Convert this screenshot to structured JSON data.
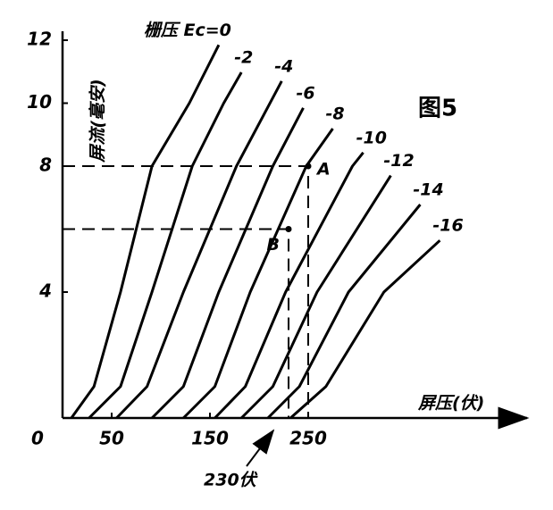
{
  "chart_data": {
    "type": "line",
    "title": "图5",
    "y_label": "屏流(毫安)",
    "x_label": "屏压(伏)",
    "annotation": "230伏",
    "color": "#000000",
    "xlim": [
      0,
      460
    ],
    "xticks": [
      0,
      50,
      150,
      250
    ],
    "ylim": [
      0,
      12
    ],
    "yticks": [
      4,
      8,
      10,
      12
    ],
    "series": [
      {
        "name": "栅压 Ec=0",
        "x": [
          9,
          32,
          59,
          91,
          129,
          159
        ],
        "values": [
          0,
          1,
          4,
          8,
          10,
          11.85
        ]
      },
      {
        "name": "-2",
        "x": [
          27,
          59,
          91,
          132,
          164,
          182
        ],
        "values": [
          0,
          1,
          4,
          8,
          10,
          10.98
        ]
      },
      {
        "name": "-4",
        "x": [
          55,
          86,
          123,
          177,
          223
        ],
        "values": [
          0,
          1,
          4,
          8,
          10.7
        ]
      },
      {
        "name": "-6",
        "x": [
          91,
          123,
          159,
          214,
          245
        ],
        "values": [
          0,
          1,
          4,
          8,
          9.85
        ]
      },
      {
        "name": "-8",
        "x": [
          123,
          155,
          191,
          248,
          275
        ],
        "values": [
          0,
          1,
          4,
          8,
          9.19
        ]
      },
      {
        "name": "-10",
        "x": [
          155,
          186,
          227,
          295,
          306
        ],
        "values": [
          0,
          1,
          4,
          8,
          8.43
        ]
      },
      {
        "name": "-12",
        "x": [
          182,
          214,
          259,
          334
        ],
        "values": [
          0,
          1,
          4,
          7.7
        ]
      },
      {
        "name": "-14",
        "x": [
          209,
          241,
          291,
          364
        ],
        "values": [
          0,
          1,
          4,
          6.78
        ]
      },
      {
        "name": "-16",
        "x": [
          232,
          268,
          327,
          384
        ],
        "values": [
          0,
          1,
          4,
          5.64
        ]
      }
    ],
    "points": [
      {
        "label": "A",
        "x": 250,
        "y": 8
      },
      {
        "label": "B",
        "x": 230,
        "y": 6
      }
    ]
  }
}
